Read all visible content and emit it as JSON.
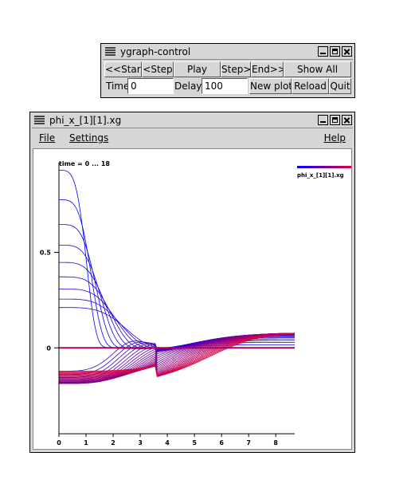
{
  "control_window": {
    "title": "ygraph-control",
    "buttons": {
      "start": "<<Start",
      "step_back": "<Step",
      "play": "Play",
      "step_forward": "Step>",
      "end": "End>>",
      "show_all": "Show All",
      "new_plot": "New plot",
      "reload": "Reload",
      "quit": "Quit"
    },
    "time_label": "Time",
    "time_value": "0",
    "delay_label": "Delay",
    "delay_value": "100"
  },
  "plot_window": {
    "title": "phi_x_[1][1].xg",
    "menu": {
      "file": "File",
      "settings": "Settings",
      "help": "Help"
    },
    "time_caption": "time = 0 ... 18",
    "legend_label": "phi_x_[1][1].xg"
  },
  "chart_data": {
    "type": "line",
    "xlim": [
      0,
      8.7
    ],
    "ylim": [
      -0.45,
      0.97
    ],
    "x_ticks": [
      0,
      1,
      2,
      3,
      4,
      5,
      6,
      7,
      8
    ],
    "y_ticks": [
      {
        "value": 0,
        "label": "0"
      },
      {
        "value": 0.5,
        "label": "0.5"
      }
    ],
    "series_count": 36,
    "color_start": "#0000ff",
    "color_end": "#e0003a",
    "legend_gradient": [
      "#0000ff",
      "#e0003a"
    ],
    "grid": false
  }
}
